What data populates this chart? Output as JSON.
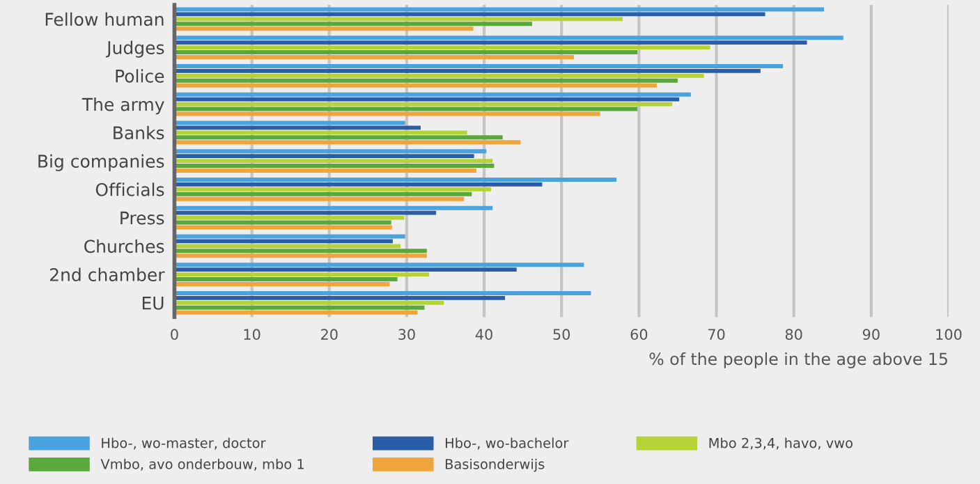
{
  "chart_data": {
    "type": "bar",
    "orientation": "horizontal",
    "xlabel": "% of the people in the age above 15",
    "categories": [
      "Fellow human",
      "Judges",
      "Police",
      "The army",
      "Banks",
      "Big companies",
      "Officials",
      "Press",
      "Churches",
      "2nd chamber",
      "EU"
    ],
    "series": [
      {
        "name": "Hbo-, wo-master, doctor",
        "color": "#4aa3df",
        "values": [
          83.9,
          86.4,
          78.6,
          66.7,
          29.8,
          40.3,
          57.1,
          41.1,
          29.8,
          52.9,
          53.8
        ]
      },
      {
        "name": "Hbo-, wo-bachelor",
        "color": "#2a5ca8",
        "values": [
          76.3,
          81.7,
          75.7,
          65.2,
          31.8,
          38.7,
          47.5,
          33.8,
          28.2,
          44.2,
          42.7
        ]
      },
      {
        "name": "Mbo 2,3,4, havo, vwo",
        "color": "#b5d334",
        "values": [
          57.9,
          69.2,
          68.4,
          64.3,
          37.8,
          41.1,
          40.9,
          29.7,
          29.2,
          32.9,
          34.8
        ]
      },
      {
        "name": "Vmbo, avo onderbouw, mbo 1",
        "color": "#5aa83c",
        "values": [
          46.2,
          59.8,
          65.0,
          59.8,
          42.4,
          41.3,
          38.4,
          28.0,
          32.6,
          28.8,
          32.3
        ]
      },
      {
        "name": "Basisonderwijs",
        "color": "#f0a43c",
        "values": [
          38.6,
          51.6,
          62.3,
          55.0,
          44.7,
          39.0,
          37.4,
          28.1,
          32.6,
          27.8,
          31.4
        ]
      }
    ],
    "xlim": [
      0,
      100
    ],
    "xticks": [
      0,
      10,
      20,
      30,
      40,
      50,
      60,
      70,
      80,
      90,
      100
    ],
    "grid": "x",
    "legend": "bottom"
  }
}
